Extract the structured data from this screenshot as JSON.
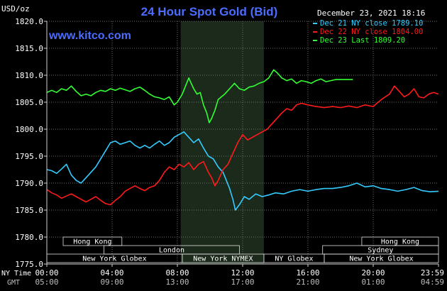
{
  "chart_data": {
    "type": "line",
    "title": "24 Hour Spot Gold (Bid)",
    "watermark": "www.kitco.com",
    "y_unit_label": "USD/oz",
    "timestamp": "December 23, 2021 18:16",
    "ylim": [
      1775.0,
      1820.0
    ],
    "yticks": [
      "1775.0",
      "1780.0",
      "1785.0",
      "1790.0",
      "1795.0",
      "1800.0",
      "1805.0",
      "1810.0",
      "1815.0",
      "1820.0"
    ],
    "x_hours": [
      0,
      24
    ],
    "xticks": [
      {
        "ny": "00:00",
        "gmt": "05:00"
      },
      {
        "ny": "04:00",
        "gmt": "09:00"
      },
      {
        "ny": "08:00",
        "gmt": "13:00"
      },
      {
        "ny": "12:00",
        "gmt": "17:00"
      },
      {
        "ny": "16:00",
        "gmt": "21:00"
      },
      {
        "ny": "20:00",
        "gmt": "01:00"
      },
      {
        "ny": "23:59",
        "gmt": "04:59"
      }
    ],
    "axis_row_labels": {
      "ny": "NY Time",
      "gmt": "GMT"
    },
    "grid": true,
    "legend_position": "top-right",
    "highlight_hours": [
      8.2,
      13.3
    ],
    "colors": {
      "background": "#000000",
      "grid": "#6e6e6e",
      "frame": "#cfcfcf",
      "text": "#ffffff",
      "title": "#4a6cff",
      "watermark": "#4a6cff",
      "highlight": "#1c2a1c",
      "session_box": "#e0e0e0"
    },
    "sessions": {
      "row1": [
        {
          "label": "Hong Kong",
          "start": 1.0,
          "end": 4.6
        },
        {
          "label": "Hong Kong",
          "start": 19.3,
          "end": 24.0
        }
      ],
      "row2": [
        {
          "label": "London",
          "start": 3.5,
          "end": 11.8
        },
        {
          "label": "Sydney",
          "start": 16.9,
          "end": 24.0
        }
      ],
      "row3": [
        {
          "label": "New York Globex",
          "start": 0.0,
          "end": 8.3
        },
        {
          "label": "New York NYMEX",
          "start": 8.3,
          "end": 13.3
        },
        {
          "label": "NY Globex",
          "start": 13.3,
          "end": 17.0
        },
        {
          "label": "New York Globex",
          "start": 17.0,
          "end": 24.0
        }
      ]
    },
    "series": [
      {
        "name": "Dec 21 NY close 1789.10",
        "color": "#33ccff",
        "points": [
          [
            0.0,
            1792.5
          ],
          [
            0.3,
            1792.3
          ],
          [
            0.6,
            1791.8
          ],
          [
            0.9,
            1792.6
          ],
          [
            1.2,
            1793.5
          ],
          [
            1.5,
            1791.5
          ],
          [
            1.8,
            1790.5
          ],
          [
            2.1,
            1790.0
          ],
          [
            2.4,
            1791.0
          ],
          [
            2.7,
            1792.0
          ],
          [
            3.0,
            1793.0
          ],
          [
            3.3,
            1794.5
          ],
          [
            3.6,
            1796.0
          ],
          [
            3.9,
            1797.5
          ],
          [
            4.2,
            1797.8
          ],
          [
            4.5,
            1797.2
          ],
          [
            4.8,
            1797.5
          ],
          [
            5.1,
            1797.8
          ],
          [
            5.4,
            1797.0
          ],
          [
            5.7,
            1796.5
          ],
          [
            6.0,
            1797.0
          ],
          [
            6.3,
            1796.5
          ],
          [
            6.6,
            1797.2
          ],
          [
            6.9,
            1797.8
          ],
          [
            7.2,
            1797.0
          ],
          [
            7.5,
            1797.5
          ],
          [
            7.8,
            1798.5
          ],
          [
            8.1,
            1799.0
          ],
          [
            8.4,
            1799.5
          ],
          [
            8.7,
            1798.5
          ],
          [
            9.0,
            1797.5
          ],
          [
            9.3,
            1798.2
          ],
          [
            9.6,
            1796.5
          ],
          [
            9.9,
            1795.0
          ],
          [
            10.2,
            1794.5
          ],
          [
            10.5,
            1793.0
          ],
          [
            10.8,
            1792.0
          ],
          [
            11.0,
            1790.5
          ],
          [
            11.2,
            1789.0
          ],
          [
            11.4,
            1787.0
          ],
          [
            11.55,
            1785.0
          ],
          [
            11.8,
            1786.0
          ],
          [
            12.1,
            1787.5
          ],
          [
            12.4,
            1787.0
          ],
          [
            12.8,
            1788.0
          ],
          [
            13.2,
            1787.5
          ],
          [
            13.6,
            1787.8
          ],
          [
            14.0,
            1788.2
          ],
          [
            14.5,
            1788.0
          ],
          [
            15.0,
            1788.5
          ],
          [
            15.5,
            1788.8
          ],
          [
            16.0,
            1788.5
          ],
          [
            16.5,
            1788.8
          ],
          [
            17.0,
            1789.0
          ],
          [
            17.5,
            1789.0
          ],
          [
            18.0,
            1789.2
          ],
          [
            18.5,
            1789.5
          ],
          [
            19.0,
            1790.0
          ],
          [
            19.5,
            1789.3
          ],
          [
            20.0,
            1789.5
          ],
          [
            20.5,
            1789.0
          ],
          [
            21.0,
            1788.8
          ],
          [
            21.5,
            1788.5
          ],
          [
            22.0,
            1788.8
          ],
          [
            22.5,
            1789.2
          ],
          [
            23.0,
            1788.6
          ],
          [
            23.5,
            1788.4
          ],
          [
            24.0,
            1788.5
          ]
        ]
      },
      {
        "name": "Dec 22 NY close 1804.00",
        "color": "#ff1a1a",
        "points": [
          [
            0.0,
            1788.8
          ],
          [
            0.3,
            1788.2
          ],
          [
            0.6,
            1787.8
          ],
          [
            0.9,
            1787.2
          ],
          [
            1.2,
            1787.6
          ],
          [
            1.5,
            1788.0
          ],
          [
            1.8,
            1787.5
          ],
          [
            2.1,
            1787.0
          ],
          [
            2.4,
            1786.5
          ],
          [
            2.7,
            1787.0
          ],
          [
            3.0,
            1787.5
          ],
          [
            3.3,
            1786.8
          ],
          [
            3.6,
            1786.2
          ],
          [
            3.9,
            1786.0
          ],
          [
            4.2,
            1786.8
          ],
          [
            4.5,
            1787.5
          ],
          [
            4.8,
            1788.5
          ],
          [
            5.1,
            1789.0
          ],
          [
            5.4,
            1789.5
          ],
          [
            5.7,
            1789.0
          ],
          [
            6.0,
            1788.6
          ],
          [
            6.3,
            1789.2
          ],
          [
            6.6,
            1789.5
          ],
          [
            6.9,
            1790.5
          ],
          [
            7.2,
            1792.0
          ],
          [
            7.5,
            1793.0
          ],
          [
            7.8,
            1792.5
          ],
          [
            8.1,
            1793.5
          ],
          [
            8.4,
            1793.0
          ],
          [
            8.7,
            1793.8
          ],
          [
            9.0,
            1792.5
          ],
          [
            9.3,
            1793.5
          ],
          [
            9.6,
            1794.0
          ],
          [
            9.9,
            1792.0
          ],
          [
            10.1,
            1791.0
          ],
          [
            10.3,
            1789.5
          ],
          [
            10.5,
            1790.5
          ],
          [
            10.8,
            1792.5
          ],
          [
            11.1,
            1793.5
          ],
          [
            11.4,
            1795.5
          ],
          [
            11.7,
            1797.5
          ],
          [
            12.0,
            1799.0
          ],
          [
            12.3,
            1798.0
          ],
          [
            12.6,
            1798.5
          ],
          [
            12.9,
            1799.0
          ],
          [
            13.2,
            1799.5
          ],
          [
            13.5,
            1800.0
          ],
          [
            13.8,
            1801.0
          ],
          [
            14.1,
            1802.0
          ],
          [
            14.4,
            1803.0
          ],
          [
            14.7,
            1803.8
          ],
          [
            15.0,
            1803.5
          ],
          [
            15.3,
            1804.5
          ],
          [
            15.6,
            1804.8
          ],
          [
            16.0,
            1804.5
          ],
          [
            16.5,
            1804.2
          ],
          [
            17.0,
            1804.0
          ],
          [
            17.5,
            1804.2
          ],
          [
            18.0,
            1804.0
          ],
          [
            18.5,
            1804.3
          ],
          [
            19.0,
            1804.0
          ],
          [
            19.5,
            1804.5
          ],
          [
            20.0,
            1804.2
          ],
          [
            20.5,
            1805.5
          ],
          [
            21.0,
            1806.5
          ],
          [
            21.3,
            1808.0
          ],
          [
            21.6,
            1807.0
          ],
          [
            21.9,
            1806.0
          ],
          [
            22.2,
            1806.5
          ],
          [
            22.5,
            1807.5
          ],
          [
            22.8,
            1806.0
          ],
          [
            23.1,
            1805.8
          ],
          [
            23.4,
            1806.5
          ],
          [
            23.7,
            1806.8
          ],
          [
            24.0,
            1806.5
          ]
        ]
      },
      {
        "name": "Dec 23 Last 1809.20",
        "color": "#33ff33",
        "points": [
          [
            0.0,
            1806.8
          ],
          [
            0.3,
            1807.2
          ],
          [
            0.6,
            1806.8
          ],
          [
            0.9,
            1807.5
          ],
          [
            1.2,
            1807.2
          ],
          [
            1.5,
            1808.0
          ],
          [
            1.8,
            1807.0
          ],
          [
            2.1,
            1806.2
          ],
          [
            2.4,
            1806.5
          ],
          [
            2.7,
            1806.2
          ],
          [
            3.0,
            1806.8
          ],
          [
            3.3,
            1807.2
          ],
          [
            3.6,
            1807.0
          ],
          [
            3.9,
            1807.5
          ],
          [
            4.2,
            1807.2
          ],
          [
            4.5,
            1807.6
          ],
          [
            4.8,
            1807.3
          ],
          [
            5.1,
            1807.0
          ],
          [
            5.4,
            1807.5
          ],
          [
            5.7,
            1807.8
          ],
          [
            6.0,
            1807.2
          ],
          [
            6.3,
            1806.5
          ],
          [
            6.6,
            1806.0
          ],
          [
            6.9,
            1805.8
          ],
          [
            7.2,
            1805.5
          ],
          [
            7.5,
            1806.0
          ],
          [
            7.8,
            1804.5
          ],
          [
            8.0,
            1805.0
          ],
          [
            8.3,
            1806.5
          ],
          [
            8.5,
            1808.0
          ],
          [
            8.7,
            1809.5
          ],
          [
            8.85,
            1808.5
          ],
          [
            9.0,
            1807.5
          ],
          [
            9.2,
            1806.5
          ],
          [
            9.4,
            1806.8
          ],
          [
            9.6,
            1804.5
          ],
          [
            9.8,
            1803.0
          ],
          [
            9.95,
            1801.2
          ],
          [
            10.1,
            1802.0
          ],
          [
            10.3,
            1803.5
          ],
          [
            10.5,
            1805.5
          ],
          [
            10.7,
            1806.0
          ],
          [
            10.9,
            1806.5
          ],
          [
            11.2,
            1807.5
          ],
          [
            11.5,
            1808.5
          ],
          [
            11.8,
            1807.5
          ],
          [
            12.1,
            1807.2
          ],
          [
            12.4,
            1807.8
          ],
          [
            12.7,
            1808.0
          ],
          [
            13.0,
            1808.5
          ],
          [
            13.3,
            1808.8
          ],
          [
            13.6,
            1809.5
          ],
          [
            13.9,
            1811.0
          ],
          [
            14.1,
            1810.5
          ],
          [
            14.4,
            1809.5
          ],
          [
            14.7,
            1809.0
          ],
          [
            15.0,
            1809.3
          ],
          [
            15.3,
            1808.5
          ],
          [
            15.6,
            1809.0
          ],
          [
            15.9,
            1808.8
          ],
          [
            16.2,
            1808.5
          ],
          [
            16.5,
            1809.0
          ],
          [
            16.8,
            1809.3
          ],
          [
            17.1,
            1808.8
          ],
          [
            17.4,
            1809.0
          ],
          [
            17.7,
            1809.2
          ],
          [
            18.0,
            1809.2
          ],
          [
            18.4,
            1809.2
          ],
          [
            18.75,
            1809.2
          ]
        ]
      }
    ]
  }
}
